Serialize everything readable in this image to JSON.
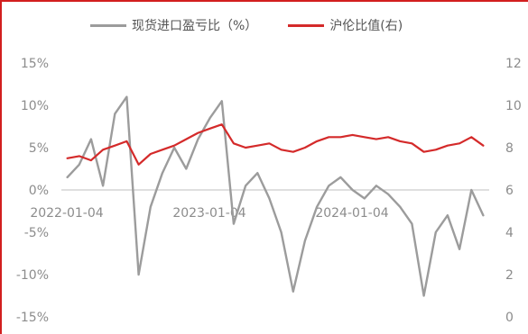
{
  "colors": {
    "accent": "#d21f1f",
    "series_gray": "#9c9c9c",
    "series_red": "#d42a2a",
    "axis_text": "#8c8c8c"
  },
  "chart_data": {
    "type": "line",
    "title": "",
    "xlabel": "",
    "ylabel_left": "",
    "ylabel_right": "",
    "legend_position": "top",
    "grid": false,
    "x_tick_labels": [
      "2022-01-04",
      "2023-01-04",
      "2024-01-04"
    ],
    "y_left": {
      "ylim": [
        -15,
        15
      ],
      "ticks": [
        -15,
        -10,
        -5,
        0,
        5,
        10,
        15
      ],
      "tick_labels": [
        "-15%",
        "-10%",
        "-5%",
        "0%",
        "5%",
        "10%",
        "15%"
      ]
    },
    "y_right": {
      "ylim": [
        0,
        12
      ],
      "ticks": [
        0,
        2,
        4,
        6,
        8,
        10,
        12
      ],
      "tick_labels": [
        "0",
        "2",
        "4",
        "6",
        "8",
        "10",
        "12"
      ]
    },
    "x": [
      "2022-01",
      "2022-02",
      "2022-03",
      "2022-04",
      "2022-05",
      "2022-06",
      "2022-07",
      "2022-08",
      "2022-09",
      "2022-10",
      "2022-11",
      "2022-12",
      "2023-01",
      "2023-02",
      "2023-03",
      "2023-04",
      "2023-05",
      "2023-06",
      "2023-07",
      "2023-08",
      "2023-09",
      "2023-10",
      "2023-11",
      "2023-12",
      "2024-01",
      "2024-02",
      "2024-03",
      "2024-04",
      "2024-05",
      "2024-06",
      "2024-07",
      "2024-08",
      "2024-09",
      "2024-10",
      "2024-11",
      "2024-12"
    ],
    "series": [
      {
        "name": "现货进口盈亏比（%）",
        "axis": "left",
        "values": [
          1.5,
          3.0,
          6.0,
          0.5,
          9.0,
          11.0,
          -10.0,
          -2.0,
          2.0,
          5.0,
          2.5,
          6.0,
          8.5,
          10.5,
          -4.0,
          0.5,
          2.0,
          -1.0,
          -5.0,
          -12.0,
          -6.0,
          -2.0,
          0.5,
          1.5,
          0.0,
          -1.0,
          0.5,
          -0.5,
          -2.0,
          -4.0,
          -12.5,
          -5.0,
          -3.0,
          -7.0,
          0.0,
          -3.0
        ]
      },
      {
        "name": "沪伦比值(右)",
        "axis": "right",
        "values": [
          7.5,
          7.6,
          7.4,
          7.9,
          8.1,
          8.3,
          7.2,
          7.7,
          7.9,
          8.1,
          8.4,
          8.7,
          8.9,
          9.1,
          8.2,
          8.0,
          8.1,
          8.2,
          7.9,
          7.8,
          8.0,
          8.3,
          8.5,
          8.5,
          8.6,
          8.5,
          8.4,
          8.5,
          8.3,
          8.2,
          7.8,
          7.9,
          8.1,
          8.2,
          8.5,
          8.1
        ]
      }
    ]
  }
}
